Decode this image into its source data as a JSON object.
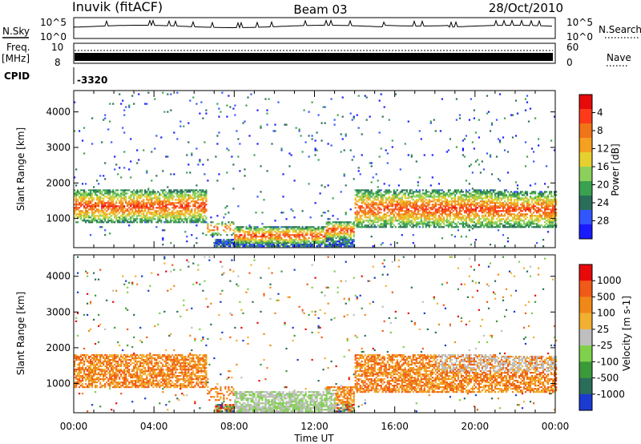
{
  "header": {
    "station": "Inuvik (fitACF)",
    "beam": "Beam 03",
    "date": "28/Oct/2010"
  },
  "top_panels": {
    "nsky_label": "N.Sky",
    "nsky_ticks": [
      "10^5",
      "10^0"
    ],
    "nsearch_label": "N.Search",
    "nsearch_ticks": [
      "10^5",
      "10^0"
    ],
    "freq_label_1": "Freq.",
    "freq_label_2": "[MHz]",
    "freq_ticks": [
      "10",
      "8"
    ],
    "nave_label": "Nave",
    "nave_ticks": [
      "60",
      "0"
    ],
    "cpid_label": "CPID",
    "cpid_value": "-3320"
  },
  "chart_data": [
    {
      "type": "heatmap",
      "name": "power",
      "ylabel": "Slant Range [km]",
      "yticks": [
        1000,
        2000,
        3000,
        4000
      ],
      "ylim": [
        180,
        4600
      ],
      "xlim_hours": [
        0,
        24
      ],
      "xticks": [
        "00:00",
        "04:00",
        "08:00",
        "12:00",
        "16:00",
        "20:00",
        "00:00"
      ],
      "colorbar_label": "Power [dB]",
      "colorbar_ticks": [
        "4",
        "8",
        "12",
        "16",
        "20",
        "24",
        "28"
      ],
      "colorbar_colors": [
        "#1a1aff",
        "#3355ff",
        "#2a6e5a",
        "#3aa150",
        "#8bd05a",
        "#e6d030",
        "#f5a020",
        "#f07418",
        "#ff3a1a",
        "#e60a0a"
      ]
    },
    {
      "type": "heatmap",
      "name": "velocity",
      "ylabel": "Slant Range [km]",
      "yticks": [
        1000,
        2000,
        3000,
        4000
      ],
      "ylim": [
        180,
        4600
      ],
      "xlim_hours": [
        0,
        24
      ],
      "xticks": [
        "00:00",
        "04:00",
        "08:00",
        "12:00",
        "16:00",
        "20:00",
        "00:00"
      ],
      "xlabel": "Time UT",
      "colorbar_label": "Velocity [m s-1]",
      "colorbar_ticks": [
        "1000",
        "500",
        "100",
        "25",
        "-25",
        "-100",
        "-500",
        "-1000"
      ],
      "colorbar_colors": [
        "#1a3ad0",
        "#2a6e5a",
        "#3a9a3a",
        "#7fd04a",
        "#bfbfbf",
        "#f2b030",
        "#f08818",
        "#f05a18",
        "#e80a0a"
      ]
    }
  ]
}
